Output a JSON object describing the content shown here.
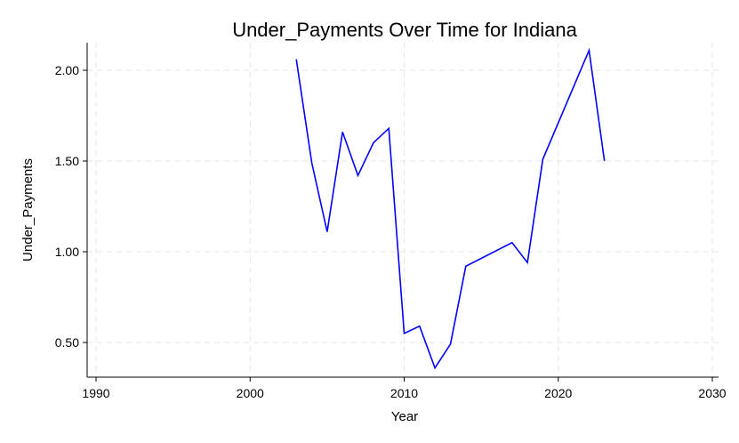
{
  "chart_data": {
    "type": "line",
    "title": "Under_Payments Over Time for Indiana",
    "xlabel": "Year",
    "ylabel": "Under_Payments",
    "xlim": [
      1990,
      2030
    ],
    "ylim": [
      0.3,
      2.15
    ],
    "x_ticks": [
      1990,
      2000,
      2010,
      2020,
      2030
    ],
    "y_ticks": [
      0.5,
      1.0,
      1.5,
      2.0
    ],
    "y_tick_labels": [
      "0.50",
      "1.00",
      "1.50",
      "2.00"
    ],
    "grid": true,
    "line_color": "#0000ff",
    "series": [
      {
        "x": [
          2003,
          2004,
          2005,
          2006,
          2007,
          2008,
          2009,
          2010,
          2011,
          2012,
          2013,
          2014,
          2017,
          2018,
          2019,
          2022,
          2023
        ],
        "values": [
          2.06,
          1.49,
          1.11,
          1.66,
          1.42,
          1.6,
          1.68,
          0.55,
          0.59,
          0.36,
          0.49,
          0.92,
          1.05,
          0.94,
          1.51,
          2.11,
          1.5
        ]
      }
    ]
  }
}
